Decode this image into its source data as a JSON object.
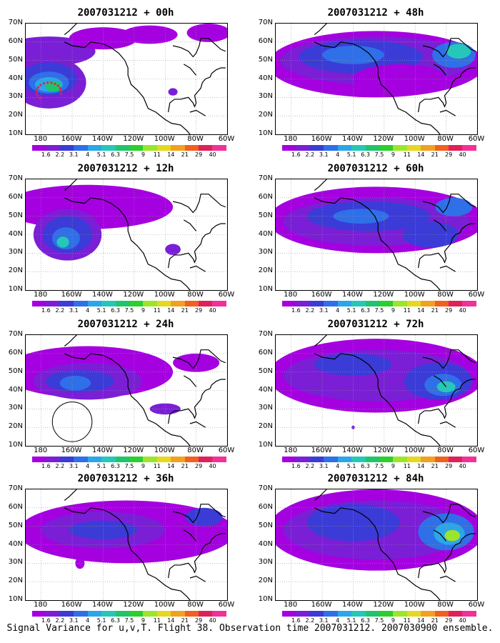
{
  "footer": "Signal Variance for u,v,T. Flight 38. Observation time 2007031212. 2007030900 ensemble.",
  "lat_labels": [
    "70N",
    "60N",
    "50N",
    "40N",
    "30N",
    "20N",
    "10N"
  ],
  "lon_labels": [
    "180",
    "160W",
    "140W",
    "120W",
    "100W",
    "80W",
    "60W"
  ],
  "colorbar": {
    "labels": [
      "1.6",
      "2.2",
      "3.1",
      "4",
      "5.1",
      "6.3",
      "7.5",
      "9",
      "11",
      "14",
      "21",
      "29",
      "40"
    ],
    "colors": [
      "#a400e0",
      "#7a1fd6",
      "#3b3bd8",
      "#2f6fe8",
      "#2ba6e6",
      "#25c7b8",
      "#20c46c",
      "#2ccf2c",
      "#9be62a",
      "#e6d820",
      "#f2a020",
      "#f0601e",
      "#e0205a",
      "#f23099"
    ]
  },
  "panels": [
    {
      "title": "2007031212 + 00h",
      "col": 0,
      "row": 0,
      "blobs": [
        {
          "lon": -175,
          "lat": 55,
          "rx": 30,
          "ry": 8,
          "level": 1
        },
        {
          "lon": -175,
          "lat": 38,
          "rx": 24,
          "ry": 14,
          "level": 1
        },
        {
          "lon": -175,
          "lat": 40,
          "rx": 18,
          "ry": 9,
          "level": 2
        },
        {
          "lon": -175,
          "lat": 38,
          "rx": 13,
          "ry": 6,
          "level": 3
        },
        {
          "lon": -175,
          "lat": 37,
          "rx": 9,
          "ry": 4,
          "level": 4
        },
        {
          "lon": -172,
          "lat": 36,
          "rx": 5,
          "ry": 3,
          "level": 6
        },
        {
          "lon": -140,
          "lat": 62,
          "rx": 22,
          "ry": 6,
          "level": 0
        },
        {
          "lon": -110,
          "lat": 64,
          "rx": 18,
          "ry": 5,
          "level": 0
        },
        {
          "lon": -95,
          "lat": 33,
          "rx": 3,
          "ry": 2,
          "level": 1
        },
        {
          "lon": -72,
          "lat": 65,
          "rx": 14,
          "ry": 5,
          "level": 0
        }
      ],
      "dots": true
    },
    {
      "title": "2007031212 + 48h",
      "col": 1,
      "row": 0,
      "blobs": [
        {
          "lon": -125,
          "lat": 48,
          "rx": 70,
          "ry": 18,
          "level": 0
        },
        {
          "lon": -125,
          "lat": 50,
          "rx": 62,
          "ry": 13,
          "level": 1
        },
        {
          "lon": -135,
          "lat": 52,
          "rx": 40,
          "ry": 9,
          "level": 2
        },
        {
          "lon": -140,
          "lat": 53,
          "rx": 20,
          "ry": 5,
          "level": 3
        },
        {
          "lon": -75,
          "lat": 53,
          "rx": 14,
          "ry": 7,
          "level": 3
        },
        {
          "lon": -72,
          "lat": 55,
          "rx": 8,
          "ry": 4,
          "level": 5
        },
        {
          "lon": -110,
          "lat": 40,
          "rx": 30,
          "ry": 8,
          "level": 0
        }
      ]
    },
    {
      "title": "2007031212 + 12h",
      "col": 0,
      "row": 1,
      "blobs": [
        {
          "lon": -150,
          "lat": 55,
          "rx": 55,
          "ry": 12,
          "level": 0
        },
        {
          "lon": -163,
          "lat": 40,
          "rx": 22,
          "ry": 14,
          "level": 1
        },
        {
          "lon": -163,
          "lat": 40,
          "rx": 16,
          "ry": 10,
          "level": 2
        },
        {
          "lon": -164,
          "lat": 38,
          "rx": 9,
          "ry": 6,
          "level": 3
        },
        {
          "lon": -166,
          "lat": 36,
          "rx": 4,
          "ry": 3,
          "level": 5
        },
        {
          "lon": -95,
          "lat": 32,
          "rx": 5,
          "ry": 3,
          "level": 1
        }
      ]
    },
    {
      "title": "2007031212 + 60h",
      "col": 1,
      "row": 1,
      "blobs": [
        {
          "lon": -125,
          "lat": 48,
          "rx": 70,
          "ry": 18,
          "level": 0
        },
        {
          "lon": -125,
          "lat": 47,
          "rx": 60,
          "ry": 13,
          "level": 1
        },
        {
          "lon": -130,
          "lat": 50,
          "rx": 40,
          "ry": 8,
          "level": 2
        },
        {
          "lon": -135,
          "lat": 50,
          "rx": 18,
          "ry": 4,
          "level": 3
        },
        {
          "lon": -75,
          "lat": 55,
          "rx": 12,
          "ry": 5,
          "level": 3
        },
        {
          "lon": -90,
          "lat": 40,
          "rx": 18,
          "ry": 7,
          "level": 2
        }
      ]
    },
    {
      "title": "2007031212 + 24h",
      "col": 0,
      "row": 2,
      "blobs": [
        {
          "lon": -150,
          "lat": 50,
          "rx": 55,
          "ry": 14,
          "level": 0
        },
        {
          "lon": -150,
          "lat": 45,
          "rx": 35,
          "ry": 10,
          "level": 1
        },
        {
          "lon": -155,
          "lat": 45,
          "rx": 22,
          "ry": 6,
          "level": 2
        },
        {
          "lon": -158,
          "lat": 44,
          "rx": 10,
          "ry": 4,
          "level": 3
        },
        {
          "lon": -100,
          "lat": 30,
          "rx": 10,
          "ry": 3,
          "level": 1
        },
        {
          "lon": -80,
          "lat": 55,
          "rx": 15,
          "ry": 5,
          "level": 0
        }
      ],
      "circle": {
        "lon": -160,
        "lat": 23,
        "r": 8
      }
    },
    {
      "title": "2007031212 + 72h",
      "col": 1,
      "row": 2,
      "blobs": [
        {
          "lon": -125,
          "lat": 48,
          "rx": 70,
          "ry": 20,
          "level": 0
        },
        {
          "lon": -125,
          "lat": 48,
          "rx": 60,
          "ry": 14,
          "level": 1
        },
        {
          "lon": -140,
          "lat": 54,
          "rx": 25,
          "ry": 6,
          "level": 2
        },
        {
          "lon": -85,
          "lat": 45,
          "rx": 22,
          "ry": 10,
          "level": 2
        },
        {
          "lon": -82,
          "lat": 43,
          "rx": 12,
          "ry": 6,
          "level": 3
        },
        {
          "lon": -80,
          "lat": 42,
          "rx": 6,
          "ry": 3,
          "level": 5
        },
        {
          "lon": -140,
          "lat": 20,
          "rx": 1,
          "ry": 1,
          "level": 1
        }
      ]
    },
    {
      "title": "2007031212 + 36h",
      "col": 0,
      "row": 3,
      "blobs": [
        {
          "lon": -125,
          "lat": 47,
          "rx": 70,
          "ry": 17,
          "level": 0
        },
        {
          "lon": -140,
          "lat": 48,
          "rx": 40,
          "ry": 10,
          "level": 1
        },
        {
          "lon": -140,
          "lat": 48,
          "rx": 22,
          "ry": 5,
          "level": 2
        },
        {
          "lon": -75,
          "lat": 55,
          "rx": 12,
          "ry": 5,
          "level": 2
        },
        {
          "lon": -155,
          "lat": 30,
          "rx": 3,
          "ry": 3,
          "level": 0
        }
      ]
    },
    {
      "title": "2007031212 + 84h",
      "col": 1,
      "row": 3,
      "blobs": [
        {
          "lon": -125,
          "lat": 48,
          "rx": 70,
          "ry": 22,
          "level": 0
        },
        {
          "lon": -125,
          "lat": 48,
          "rx": 60,
          "ry": 16,
          "level": 1
        },
        {
          "lon": -140,
          "lat": 52,
          "rx": 30,
          "ry": 10,
          "level": 2
        },
        {
          "lon": -80,
          "lat": 47,
          "rx": 18,
          "ry": 10,
          "level": 3
        },
        {
          "lon": -78,
          "lat": 46,
          "rx": 10,
          "ry": 6,
          "level": 4
        },
        {
          "lon": -76,
          "lat": 45,
          "rx": 5,
          "ry": 3,
          "level": 8
        }
      ]
    }
  ]
}
